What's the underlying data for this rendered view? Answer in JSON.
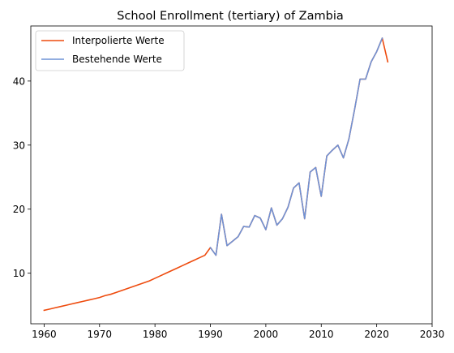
{
  "chart_data": {
    "type": "line",
    "title": "School Enrollment (tertiary) of Zambia",
    "xlabel": "",
    "ylabel": "",
    "xlim": [
      1957.6,
      2030
    ],
    "ylim": [
      2.1,
      48.6
    ],
    "xticks": [
      1960,
      1970,
      1980,
      1990,
      2000,
      2010,
      2020,
      2030
    ],
    "yticks": [
      10,
      20,
      30,
      40
    ],
    "grid": false,
    "legend_position": "top-left",
    "series": [
      {
        "name": "Interpolierte Werte",
        "color": "#ee4b0e",
        "x": [
          1960,
          1961,
          1962,
          1963,
          1964,
          1965,
          1966,
          1967,
          1968,
          1969,
          1970,
          1971,
          1972,
          1973,
          1974,
          1975,
          1976,
          1977,
          1978,
          1979,
          1980,
          1981,
          1982,
          1983,
          1984,
          1985,
          1986,
          1987,
          1988,
          1989,
          1990,
          1991,
          1992,
          1993,
          1994,
          1995,
          1996,
          1997,
          1998,
          1999,
          2000,
          2001,
          2002,
          2003,
          2004,
          2005,
          2006,
          2007,
          2008,
          2009,
          2010,
          2011,
          2012,
          2013,
          2014,
          2015,
          2016,
          2017,
          2018,
          2019,
          2020,
          2021,
          2022
        ],
        "y": [
          4.2,
          4.4,
          4.6,
          4.8,
          5.0,
          5.2,
          5.4,
          5.6,
          5.8,
          6.0,
          6.2,
          6.5,
          6.7,
          7.0,
          7.3,
          7.6,
          7.9,
          8.2,
          8.5,
          8.8,
          9.2,
          9.6,
          10.0,
          10.4,
          10.8,
          11.2,
          11.6,
          12.0,
          12.4,
          12.8,
          14.0,
          12.8,
          19.2,
          14.3,
          15.0,
          15.7,
          17.3,
          17.2,
          19.0,
          18.6,
          16.8,
          20.2,
          17.5,
          18.5,
          20.3,
          23.3,
          24.1,
          18.5,
          25.8,
          26.5,
          22.0,
          28.3,
          29.2,
          30.0,
          28.0,
          31.0,
          35.5,
          40.3,
          40.3,
          43.0,
          44.6,
          46.7,
          43.0
        ]
      },
      {
        "name": "Bestehende Werte",
        "color": "#6f93d6",
        "x": [
          1990,
          1991,
          1992,
          1993,
          1994,
          1995,
          1996,
          1997,
          1998,
          1999,
          2000,
          2001,
          2002,
          2003,
          2004,
          2005,
          2006,
          2007,
          2008,
          2009,
          2010,
          2011,
          2012,
          2013,
          2014,
          2015,
          2016,
          2017,
          2018,
          2019,
          2020,
          2021
        ],
        "y": [
          14.0,
          12.8,
          19.2,
          14.3,
          15.0,
          15.7,
          17.3,
          17.2,
          19.0,
          18.6,
          16.8,
          20.2,
          17.5,
          18.5,
          20.3,
          23.3,
          24.1,
          18.5,
          25.8,
          26.5,
          22.0,
          28.3,
          29.2,
          30.0,
          28.0,
          31.0,
          35.5,
          40.3,
          40.3,
          43.0,
          44.6,
          46.7
        ]
      }
    ]
  }
}
